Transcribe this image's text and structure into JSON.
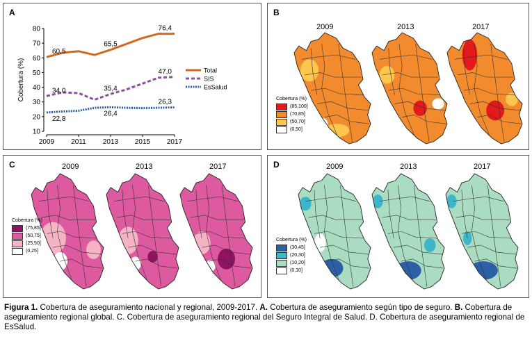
{
  "panelA": {
    "label": "A",
    "ylabel": "Cobertura (%)",
    "yticks": [
      "10",
      "20",
      "30",
      "40",
      "50",
      "60",
      "70",
      "80"
    ],
    "xticks": [
      "2009",
      "2011",
      "2013",
      "2015",
      "2017"
    ],
    "legend": [
      "Total",
      "SIS",
      "EsSalud"
    ],
    "annotations": [
      "60,5",
      "65,5",
      "76,4",
      "34,0",
      "35,4",
      "47,0",
      "22,8",
      "26,4",
      "26,3"
    ]
  },
  "panelB": {
    "label": "B",
    "years": [
      "2009",
      "2013",
      "2017"
    ],
    "legend_title": "Cobertura (%)",
    "legend": [
      {
        "label": "(85,100]",
        "color": "#e31a1c"
      },
      {
        "label": "(70,85]",
        "color": "#f28a2e"
      },
      {
        "label": "(50,70]",
        "color": "#fdc74e"
      },
      {
        "label": "(0,50]",
        "color": "#ffffff"
      }
    ]
  },
  "panelC": {
    "label": "C",
    "years": [
      "2009",
      "2013",
      "2017"
    ],
    "legend_title": "Cobertura (%)",
    "legend": [
      {
        "label": "(75,85]",
        "color": "#8e1462"
      },
      {
        "label": "(50,75]",
        "color": "#de5aa0"
      },
      {
        "label": "(25,50]",
        "color": "#f4b4c4"
      },
      {
        "label": "(0,25]",
        "color": "#ffffff"
      }
    ]
  },
  "panelD": {
    "label": "D",
    "years": [
      "2009",
      "2013",
      "2017"
    ],
    "legend_title": "Cobertura (%)",
    "legend": [
      {
        "label": "(30,45]",
        "color": "#2d5fa6"
      },
      {
        "label": "(20,30]",
        "color": "#3db6c9"
      },
      {
        "label": "(10,20]",
        "color": "#a9dcc0"
      },
      {
        "label": "(0,10]",
        "color": "#ffffff"
      }
    ]
  },
  "caption": {
    "fig": "Figura 1.",
    "text": " Cobertura de aseguramiento nacional y regional, 2009-2017. ",
    "a": "A.",
    "a_text": " Cobertura de aseguramiento según tipo de seguro. ",
    "b": "B.",
    "b_text": " Cobertura de aseguramiento regional global. C. Cobertura de aseguramiento regional del Seguro Integral de Salud. D. Cobertura de aseguramiento regional de EsSalud."
  },
  "chart_data": {
    "type": "line",
    "x": [
      2009,
      2010,
      2011,
      2012,
      2013,
      2014,
      2015,
      2016,
      2017
    ],
    "series": [
      {
        "name": "Total",
        "values": [
          60.5,
          63.5,
          64.5,
          62.0,
          65.5,
          69.5,
          73.5,
          76.4,
          76.4
        ],
        "color": "#d2691e",
        "style": "solid"
      },
      {
        "name": "SIS",
        "values": [
          34.0,
          36.5,
          36.0,
          31.5,
          35.4,
          38.5,
          42.5,
          46.5,
          47.0
        ],
        "color": "#8c4e9e",
        "style": "dashed"
      },
      {
        "name": "EsSalud",
        "values": [
          22.8,
          23.5,
          24.0,
          26.0,
          26.4,
          26.0,
          25.8,
          26.0,
          26.3
        ],
        "color": "#2d5fa6",
        "style": "dotted"
      }
    ],
    "ylabel": "Cobertura (%)",
    "ylim": [
      10,
      80
    ],
    "xlim": [
      2009,
      2017
    ]
  }
}
